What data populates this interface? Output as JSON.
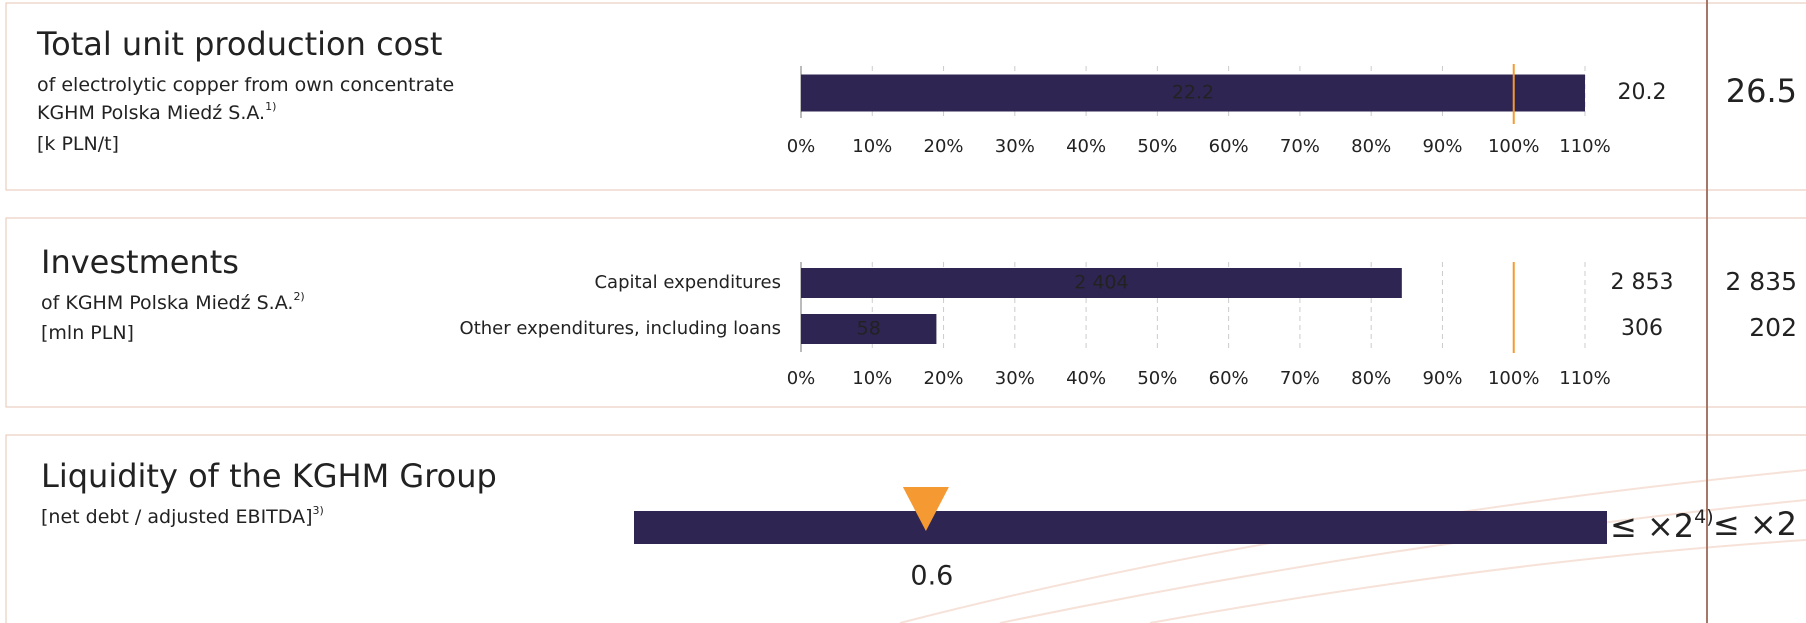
{
  "chart_data": [
    {
      "type": "bar",
      "title": "Total unit production cost",
      "subtitle": [
        [
          "of electrolytic copper from own concentrate"
        ],
        [
          "KGHM Polska Miedź S.A.",
          "1)"
        ],
        [
          "[k PLN/t]"
        ]
      ],
      "values": [
        110
      ],
      "bar_labels": [
        "22.2"
      ],
      "plan_labels": [
        "20.2"
      ],
      "target_labels": [
        "26.5"
      ],
      "xlim": [
        0,
        110
      ],
      "xticks": [
        {
          "value": 0,
          "label": "0%"
        },
        {
          "value": 10,
          "label": "10%"
        },
        {
          "value": 20,
          "label": "20%"
        },
        {
          "value": 30,
          "label": "30%"
        },
        {
          "value": 40,
          "label": "40%"
        },
        {
          "value": 50,
          "label": "50%"
        },
        {
          "value": 60,
          "label": "60%"
        },
        {
          "value": 70,
          "label": "70%"
        },
        {
          "value": 80,
          "label": "80%"
        },
        {
          "value": 90,
          "label": "90%"
        },
        {
          "value": 100,
          "label": "100%"
        },
        {
          "value": 110,
          "label": "110%"
        }
      ],
      "reference": 100,
      "color": "#2f2552",
      "reference_color": "#f59a32",
      "target_color": "#1ba57c",
      "grid": true
    },
    {
      "type": "bar",
      "title": "Investments",
      "subtitle": [
        [
          "of KGHM Polska Miedź S.A.",
          "2)"
        ],
        [
          "[mln PLN]"
        ]
      ],
      "categories": [
        "Capital expenditures",
        "Other expenditures, including loans"
      ],
      "values": [
        84.3,
        19.0
      ],
      "bar_labels": [
        "2 404",
        "58"
      ],
      "plan_labels": [
        "2 853",
        "306"
      ],
      "target_labels": [
        "2 835",
        "202"
      ],
      "xlim": [
        0,
        110
      ],
      "xticks": [
        {
          "value": 0,
          "label": "0%"
        },
        {
          "value": 10,
          "label": "10%"
        },
        {
          "value": 20,
          "label": "20%"
        },
        {
          "value": 30,
          "label": "30%"
        },
        {
          "value": 40,
          "label": "40%"
        },
        {
          "value": 50,
          "label": "50%"
        },
        {
          "value": 60,
          "label": "60%"
        },
        {
          "value": 70,
          "label": "70%"
        },
        {
          "value": 80,
          "label": "80%"
        },
        {
          "value": 90,
          "label": "90%"
        },
        {
          "value": 100,
          "label": "100%"
        },
        {
          "value": 110,
          "label": "110%"
        }
      ],
      "reference": 100,
      "color": "#2f2552",
      "reference_color": "#f59a32",
      "target_color": "#1ba57c",
      "grid": true
    },
    {
      "type": "bullet",
      "title": "Liquidity of the KGHM Group",
      "subtitle": [
        [
          "[net debt / adjusted EBITDA]",
          "3)"
        ]
      ],
      "value": 0.6,
      "value_label": "0.6",
      "xlim": [
        0,
        2
      ],
      "limit_label": [
        "≤ ×2",
        "4)"
      ],
      "target_label": "≤ ×2",
      "color": "#2f2552",
      "marker_color": "#f59a32",
      "target_color": "#1ba57c"
    }
  ]
}
